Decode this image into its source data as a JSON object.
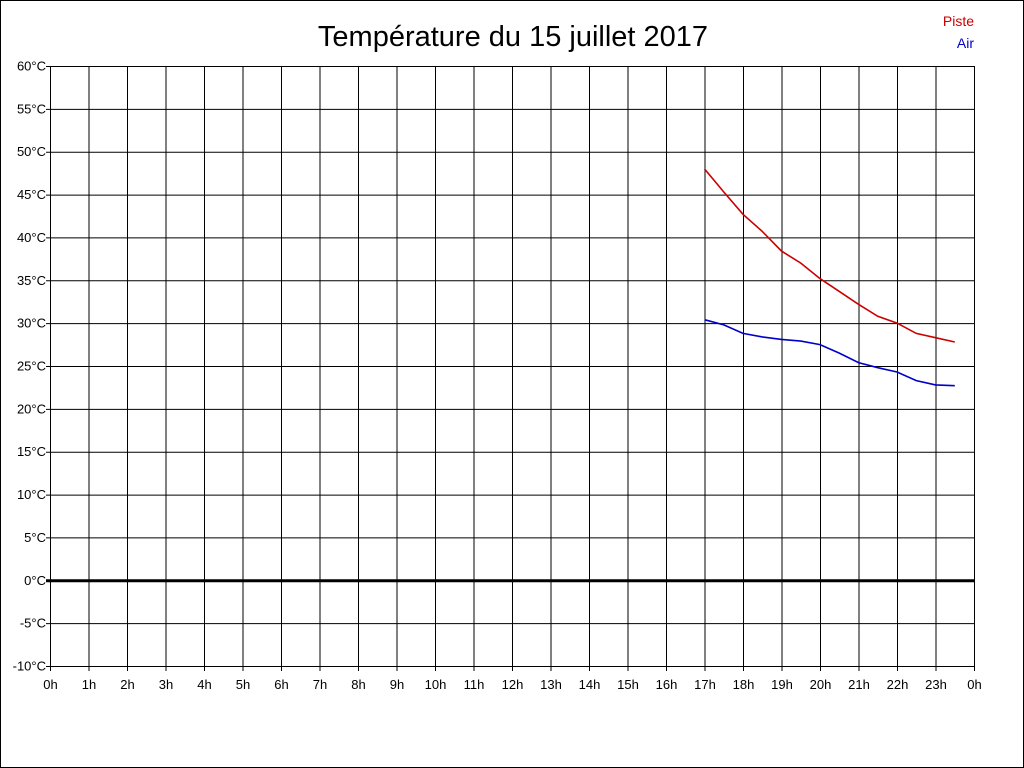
{
  "chart_data": {
    "type": "line",
    "title": "Température du 15 juillet 2017",
    "xlabel": "",
    "ylabel": "",
    "x_ticks": [
      "0h",
      "1h",
      "2h",
      "3h",
      "4h",
      "5h",
      "6h",
      "7h",
      "8h",
      "9h",
      "10h",
      "11h",
      "12h",
      "13h",
      "14h",
      "15h",
      "16h",
      "17h",
      "18h",
      "19h",
      "20h",
      "21h",
      "22h",
      "23h",
      "0h"
    ],
    "y_ticks": [
      "60°C",
      "55°C",
      "50°C",
      "45°C",
      "40°C",
      "35°C",
      "30°C",
      "25°C",
      "20°C",
      "15°C",
      "10°C",
      "5°C",
      "0°C",
      "-5°C",
      "-10°C"
    ],
    "xlim": [
      0,
      24
    ],
    "ylim": [
      -10,
      60
    ],
    "grid": true,
    "legend_position": "top-right",
    "series": [
      {
        "name": "Piste",
        "color": "#cc0000",
        "x": [
          17,
          17.5,
          18,
          18.5,
          19,
          19.5,
          20,
          20.5,
          21,
          21.5,
          22,
          22.5,
          23,
          23.5
        ],
        "values": [
          48.0,
          45.3,
          42.7,
          40.7,
          38.4,
          37.0,
          35.2,
          33.7,
          32.2,
          30.8,
          30.0,
          28.8,
          28.3,
          27.8
        ]
      },
      {
        "name": "Air",
        "color": "#0000cc",
        "x": [
          17,
          17.5,
          18,
          18.5,
          19,
          19.5,
          20,
          20.5,
          21,
          21.5,
          22,
          22.5,
          23,
          23.5
        ],
        "values": [
          30.4,
          29.8,
          28.8,
          28.4,
          28.1,
          27.9,
          27.5,
          26.5,
          25.4,
          24.8,
          24.3,
          23.3,
          22.8,
          22.7
        ]
      }
    ]
  }
}
